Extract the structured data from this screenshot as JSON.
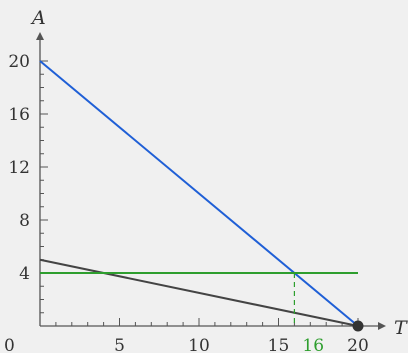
{
  "chart_data": {
    "type": "line",
    "title": "",
    "xlabel": "T",
    "ylabel": "A",
    "xlim": [
      0,
      20
    ],
    "ylim": [
      0,
      20
    ],
    "origin_label": "0",
    "x_ticks": [
      5,
      10,
      15,
      20
    ],
    "x_tick_labels": [
      "5",
      "10",
      "15",
      "20"
    ],
    "y_ticks": [
      4,
      8,
      12,
      16,
      20
    ],
    "y_tick_labels": [
      "4",
      "8",
      "12",
      "16",
      "20"
    ],
    "x_minor_step": 1,
    "y_minor_step": 1,
    "grid": false,
    "series": [
      {
        "x": [
          0,
          20
        ],
        "y": [
          20,
          0
        ],
        "color": "#1f5fd6"
      },
      {
        "x": [
          0,
          20
        ],
        "y": [
          5,
          0
        ],
        "color": "#444444"
      },
      {
        "x": [
          0,
          20
        ],
        "y": [
          4,
          4
        ],
        "color": "#2e9e2e"
      }
    ],
    "point": {
      "x": 20,
      "y": 0,
      "color": "#333333"
    },
    "highlight": {
      "x": 16,
      "y": 4,
      "label": "16",
      "color": "#2e9e2e",
      "dashed_drop_line": true
    }
  }
}
